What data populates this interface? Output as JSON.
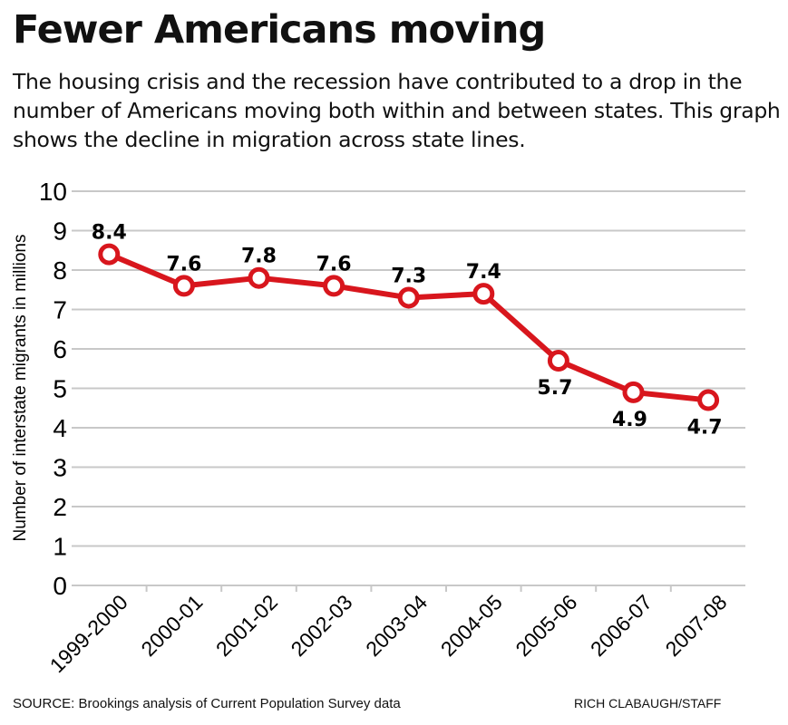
{
  "header": {
    "title": "Fewer Americans moving",
    "subtitle": "The housing crisis and the recession have contributed to a drop in the number of Americans moving both within and between states. This graph shows the decline in migration across state lines."
  },
  "chart_data": {
    "type": "line",
    "title": "Fewer Americans moving",
    "ylabel": "Number of interstate migrants in millions",
    "xlabel": "",
    "categories": [
      "1999-2000",
      "2000-01",
      "2001-02",
      "2002-03",
      "2003-04",
      "2004-05",
      "2005-06",
      "2006-07",
      "2007-08"
    ],
    "values": [
      8.4,
      7.6,
      7.8,
      7.6,
      7.3,
      7.4,
      5.7,
      4.9,
      4.7
    ],
    "data_labels": [
      "8.4",
      "7.6",
      "7.8",
      "7.6",
      "7.3",
      "7.4",
      "5.7",
      "4.9",
      "4.7"
    ],
    "ylim": [
      0,
      10
    ],
    "yticks": [
      0,
      1,
      2,
      3,
      4,
      5,
      6,
      7,
      8,
      9,
      10
    ],
    "grid": true,
    "legend": "none",
    "line_color": "#d8161d",
    "marker": "hollow circle"
  },
  "footer": {
    "source": "SOURCE: Brookings analysis of Current Population Survey data",
    "credit": "RICH CLABAUGH/STAFF"
  }
}
